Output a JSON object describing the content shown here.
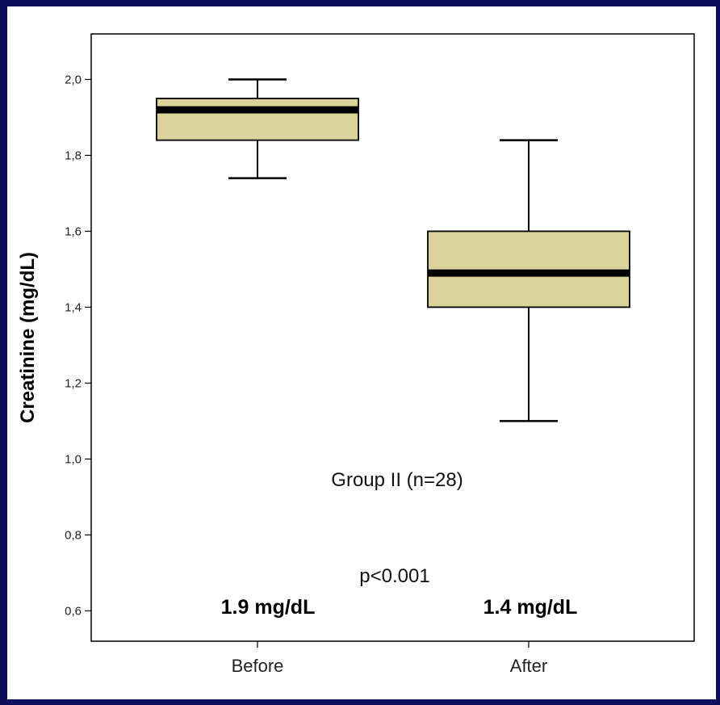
{
  "chart_data": {
    "type": "box",
    "title": "",
    "xlabel": "",
    "ylabel": "Creatinine (mg/dL)",
    "ylim": [
      0.52,
      2.12
    ],
    "yticks": [
      {
        "value": 0.6,
        "label": "0,6"
      },
      {
        "value": 0.8,
        "label": "0,8"
      },
      {
        "value": 1.0,
        "label": "1,0"
      },
      {
        "value": 1.2,
        "label": "1,2"
      },
      {
        "value": 1.4,
        "label": "1,4"
      },
      {
        "value": 1.6,
        "label": "1,6"
      },
      {
        "value": 1.8,
        "label": "1,8"
      },
      {
        "value": 2.0,
        "label": "2,0"
      }
    ],
    "categories": [
      "Before",
      "After"
    ],
    "boxes": [
      {
        "category": "Before",
        "whisker_low": 1.74,
        "q1": 1.84,
        "median": 1.92,
        "q3": 1.95,
        "whisker_high": 2.0
      },
      {
        "category": "After",
        "whisker_low": 1.1,
        "q1": 1.4,
        "median": 1.49,
        "q3": 1.6,
        "whisker_high": 1.84
      }
    ],
    "box_color": "#dcd39a",
    "grid": false,
    "annotations": {
      "group_label": "Group II (n=28)",
      "p_value": "p<0.001",
      "before_mean": "1.9 mg/dL",
      "after_mean": "1.4 mg/dL"
    }
  }
}
